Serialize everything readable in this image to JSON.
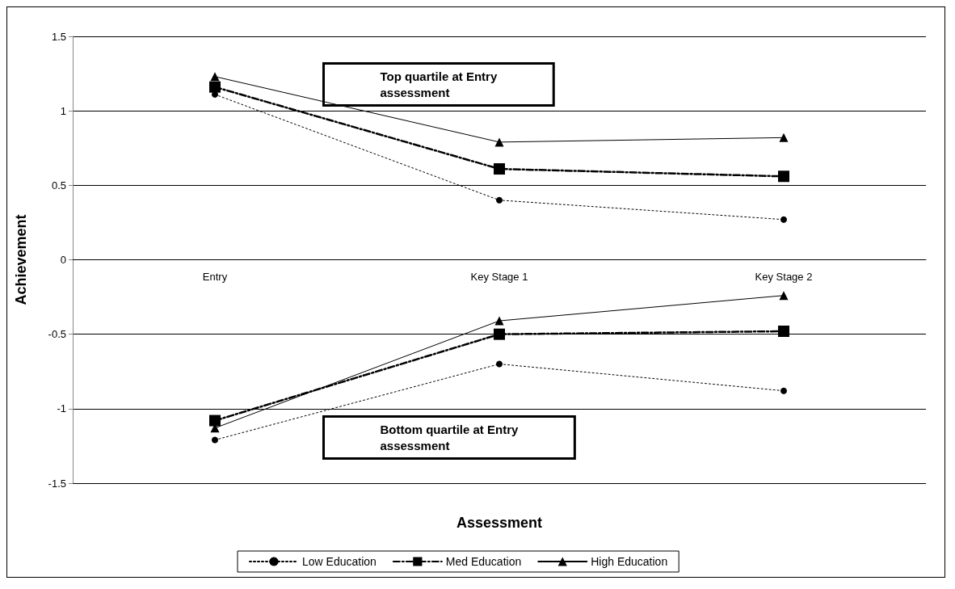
{
  "chart_data": {
    "type": "line",
    "categories": [
      "Entry",
      "Key Stage 1",
      "Key Stage 2"
    ],
    "xlabel": "Assessment",
    "ylabel": "Achievement",
    "ylim": [
      -1.5,
      1.5
    ],
    "yticks": [
      -1.5,
      -1,
      -0.5,
      0,
      0.5,
      1,
      1.5
    ],
    "grid": "y",
    "legend": "bottom",
    "series": [
      {
        "name": "Low Education",
        "color": "#000000",
        "marker": "circle",
        "line_style": "dotted",
        "values": [
          1.11,
          0.4,
          0.27
        ]
      },
      {
        "name": "Med Education",
        "color": "#000000",
        "marker": "square",
        "line_style": "dashed",
        "values": [
          1.16,
          0.61,
          0.56
        ]
      },
      {
        "name": "High Education",
        "color": "#000000",
        "marker": "triangle",
        "line_style": "solid",
        "values": [
          1.23,
          0.79,
          0.82
        ]
      },
      {
        "color": "#000000",
        "marker": "circle",
        "line_style": "dotted",
        "values": [
          -1.21,
          -0.7,
          -0.88
        ]
      },
      {
        "color": "#000000",
        "marker": "square",
        "line_style": "dashed",
        "values": [
          -1.08,
          -0.5,
          -0.48
        ]
      },
      {
        "color": "#000000",
        "marker": "triangle",
        "line_style": "solid",
        "values": [
          -1.13,
          -0.41,
          -0.24
        ]
      }
    ],
    "annotations": [
      "Top quartile at Entry\nassessment",
      "Bottom quartile at Entry\nassessment"
    ]
  }
}
